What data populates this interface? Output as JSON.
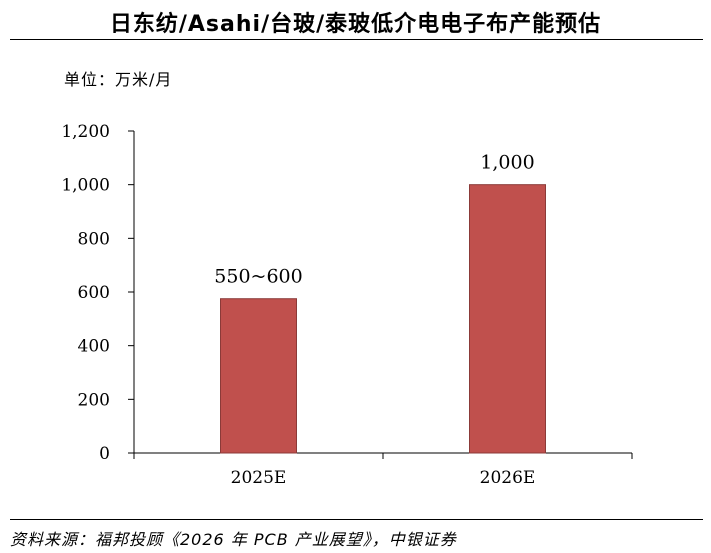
{
  "header": {
    "title": "日东纺/Asahi/台玻/泰玻低介电电子布产能预估"
  },
  "unit_label": "单位：万米/月",
  "footer": {
    "source": "资料来源：福邦投顾《2026 年 PCB 产业展望》，中银证券"
  },
  "colors": {
    "bar": "#c0504d",
    "bar_border": "#8b3a38",
    "axis": "#000000"
  },
  "chart_data": {
    "type": "bar",
    "title": "日东纺/Asahi/台玻/泰玻低介电电子布产能预估",
    "ylabel": "单位：万米/月",
    "categories": [
      "2025E",
      "2026E"
    ],
    "values": [
      575,
      1000
    ],
    "data_labels": [
      "550~600",
      "1,000"
    ],
    "ylim": [
      0,
      1200
    ],
    "yticks": [
      0,
      200,
      400,
      600,
      800,
      1000,
      1200
    ],
    "ytick_labels": [
      "0",
      "200",
      "400",
      "600",
      "800",
      "1,000",
      "1,200"
    ],
    "grid": false,
    "legend": "none"
  }
}
